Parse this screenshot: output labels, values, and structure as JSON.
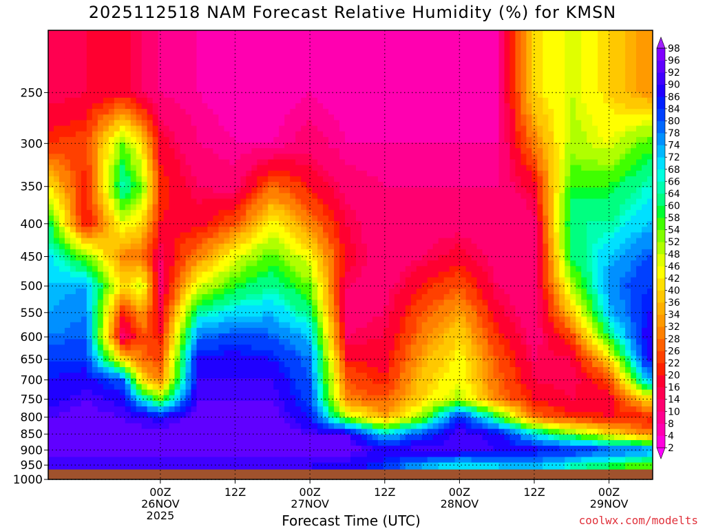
{
  "chart_data": {
    "type": "heatmap",
    "title": "2025112518 NAM Forecast Relative Humidity (%) for KMSN",
    "xlabel": "Forecast Time (UTC)",
    "ylabel": "",
    "credit": "coolwx.com/modelts",
    "y_axis": {
      "scale": "log-pressure",
      "unit": "hPa",
      "inverted": true,
      "range": [
        200,
        1000
      ],
      "ticks": [
        250,
        300,
        350,
        400,
        450,
        500,
        550,
        600,
        650,
        700,
        750,
        800,
        850,
        900,
        950,
        1000
      ]
    },
    "x_axis": {
      "range_hours": [
        -12,
        85
      ],
      "ticks": [
        {
          "hour": 6,
          "lines": [
            "00Z",
            "26NOV",
            "2025"
          ]
        },
        {
          "hour": 18,
          "lines": [
            "12Z"
          ]
        },
        {
          "hour": 30,
          "lines": [
            "00Z",
            "27NOV"
          ]
        },
        {
          "hour": 42,
          "lines": [
            "12Z"
          ]
        },
        {
          "hour": 54,
          "lines": [
            "00Z",
            "28NOV"
          ]
        },
        {
          "hour": 66,
          "lines": [
            "12Z"
          ]
        },
        {
          "hour": 78,
          "lines": [
            "00Z",
            "29NOV"
          ]
        }
      ]
    },
    "grid": true,
    "surface_pressure_hpa": 965,
    "colorbar": {
      "placement": "right",
      "levels": [
        2,
        4,
        8,
        10,
        14,
        16,
        20,
        22,
        26,
        28,
        32,
        34,
        36,
        40,
        42,
        46,
        48,
        52,
        54,
        58,
        60,
        64,
        66,
        68,
        72,
        74,
        78,
        80,
        84,
        86,
        90,
        92,
        96,
        98
      ],
      "colors": [
        "#ff00ff",
        "#ff00dd",
        "#ff00b0",
        "#ff0090",
        "#ff0070",
        "#ff0050",
        "#ff0030",
        "#ff2000",
        "#ff4000",
        "#ff6000",
        "#ff8000",
        "#ff9a00",
        "#ffb000",
        "#ffc800",
        "#ffe000",
        "#ffff00",
        "#e0ff00",
        "#b0ff00",
        "#80ff00",
        "#40ff00",
        "#00ff30",
        "#00ff80",
        "#00ffb0",
        "#00ffe0",
        "#00e0ff",
        "#00b8ff",
        "#0090ff",
        "#0068ff",
        "#0040ff",
        "#0020ff",
        "#2000ff",
        "#4000ff",
        "#6000ff",
        "#8000ff",
        "#a020ff"
      ]
    },
    "rh_profiles": [
      {
        "hour": -12,
        "p": [
          250,
          300,
          350,
          400,
          450,
          500,
          550,
          600,
          650,
          700,
          750,
          800,
          850,
          900,
          950
        ],
        "rh": [
          14,
          22,
          42,
          62,
          70,
          72,
          74,
          78,
          84,
          86,
          88,
          92,
          92,
          94,
          90
        ]
      },
      {
        "hour": -6,
        "p": [
          250,
          300,
          350,
          400,
          450,
          500,
          550,
          600,
          650,
          700,
          750,
          800,
          850,
          900,
          950
        ],
        "rh": [
          16,
          24,
          20,
          18,
          54,
          74,
          78,
          80,
          84,
          88,
          92,
          94,
          94,
          94,
          90
        ]
      },
      {
        "hour": 0,
        "p": [
          250,
          300,
          350,
          400,
          450,
          500,
          550,
          600,
          650,
          700,
          750,
          800,
          850,
          900,
          950
        ],
        "rh": [
          18,
          54,
          66,
          46,
          30,
          40,
          20,
          12,
          40,
          80,
          88,
          92,
          94,
          94,
          90
        ]
      },
      {
        "hour": 3,
        "p": [
          250,
          300,
          350,
          400,
          450,
          500,
          550,
          600,
          650,
          700,
          750,
          800,
          850,
          900,
          950
        ],
        "rh": [
          14,
          40,
          54,
          40,
          28,
          48,
          34,
          26,
          28,
          40,
          70,
          90,
          94,
          94,
          90
        ]
      },
      {
        "hour": 6,
        "p": [
          250,
          300,
          350,
          400,
          450,
          500,
          550,
          600,
          650,
          700,
          750,
          800,
          850,
          900,
          950
        ],
        "rh": [
          10,
          18,
          22,
          20,
          14,
          12,
          16,
          20,
          24,
          30,
          54,
          88,
          94,
          94,
          90
        ]
      },
      {
        "hour": 12,
        "p": [
          250,
          300,
          350,
          400,
          450,
          500,
          550,
          600,
          650,
          700,
          750,
          800,
          850,
          900,
          950
        ],
        "rh": [
          8,
          10,
          14,
          18,
          30,
          46,
          64,
          78,
          88,
          90,
          92,
          94,
          96,
          94,
          90
        ]
      },
      {
        "hour": 18,
        "p": [
          250,
          300,
          350,
          400,
          450,
          500,
          550,
          600,
          650,
          700,
          750,
          800,
          850,
          900,
          950
        ],
        "rh": [
          6,
          8,
          12,
          26,
          46,
          58,
          70,
          82,
          88,
          90,
          92,
          94,
          96,
          94,
          90
        ]
      },
      {
        "hour": 24,
        "p": [
          250,
          300,
          350,
          400,
          450,
          500,
          550,
          600,
          650,
          700,
          750,
          800,
          850,
          900,
          950
        ],
        "rh": [
          6,
          8,
          28,
          44,
          56,
          64,
          72,
          80,
          86,
          90,
          92,
          94,
          94,
          94,
          90
        ]
      },
      {
        "hour": 30,
        "p": [
          250,
          300,
          350,
          400,
          450,
          500,
          550,
          600,
          650,
          700,
          750,
          800,
          850,
          900,
          950
        ],
        "rh": [
          8,
          12,
          20,
          30,
          44,
          54,
          62,
          72,
          78,
          80,
          82,
          86,
          92,
          94,
          90
        ]
      },
      {
        "hour": 36,
        "p": [
          250,
          300,
          350,
          400,
          450,
          500,
          550,
          600,
          650,
          700,
          750,
          800,
          850,
          900,
          950
        ],
        "rh": [
          6,
          8,
          12,
          16,
          18,
          14,
          12,
          14,
          20,
          26,
          30,
          50,
          92,
          94,
          88
        ]
      },
      {
        "hour": 42,
        "p": [
          250,
          300,
          350,
          400,
          450,
          500,
          550,
          600,
          650,
          700,
          750,
          800,
          850,
          900,
          950
        ],
        "rh": [
          6,
          8,
          10,
          10,
          10,
          12,
          14,
          16,
          18,
          20,
          26,
          34,
          70,
          90,
          84
        ]
      },
      {
        "hour": 48,
        "p": [
          250,
          300,
          350,
          400,
          450,
          500,
          550,
          600,
          650,
          700,
          750,
          800,
          850,
          900,
          950
        ],
        "rh": [
          6,
          8,
          10,
          12,
          14,
          20,
          26,
          30,
          34,
          38,
          40,
          52,
          82,
          92,
          74
        ]
      },
      {
        "hour": 54,
        "p": [
          250,
          300,
          350,
          400,
          450,
          500,
          550,
          600,
          650,
          700,
          750,
          800,
          850,
          900,
          950
        ],
        "rh": [
          6,
          8,
          10,
          12,
          18,
          26,
          34,
          40,
          44,
          46,
          50,
          86,
          92,
          92,
          70
        ]
      },
      {
        "hour": 60,
        "p": [
          250,
          300,
          350,
          400,
          450,
          500,
          550,
          600,
          650,
          700,
          750,
          800,
          850,
          900,
          950
        ],
        "rh": [
          8,
          8,
          10,
          10,
          12,
          14,
          18,
          22,
          26,
          28,
          30,
          60,
          88,
          90,
          72
        ]
      },
      {
        "hour": 66,
        "p": [
          250,
          300,
          350,
          400,
          450,
          500,
          550,
          600,
          650,
          700,
          750,
          800,
          850,
          900,
          950
        ],
        "rh": [
          40,
          30,
          18,
          12,
          10,
          10,
          10,
          12,
          14,
          16,
          20,
          28,
          70,
          88,
          74
        ]
      },
      {
        "hour": 72,
        "p": [
          250,
          300,
          350,
          400,
          450,
          500,
          550,
          600,
          650,
          700,
          750,
          800,
          850,
          900,
          950
        ],
        "rh": [
          48,
          50,
          58,
          64,
          60,
          50,
          38,
          24,
          16,
          14,
          16,
          22,
          54,
          86,
          66
        ]
      },
      {
        "hour": 78,
        "p": [
          250,
          300,
          350,
          400,
          450,
          500,
          550,
          600,
          650,
          700,
          750,
          800,
          850,
          900,
          950
        ],
        "rh": [
          40,
          46,
          58,
          64,
          72,
          76,
          72,
          60,
          40,
          24,
          18,
          20,
          42,
          82,
          60
        ]
      },
      {
        "hour": 84,
        "p": [
          250,
          300,
          350,
          400,
          450,
          500,
          550,
          600,
          650,
          700,
          750,
          800,
          850,
          900,
          950
        ],
        "rh": [
          32,
          56,
          66,
          72,
          80,
          84,
          86,
          88,
          86,
          72,
          40,
          20,
          30,
          78,
          56
        ]
      }
    ]
  }
}
